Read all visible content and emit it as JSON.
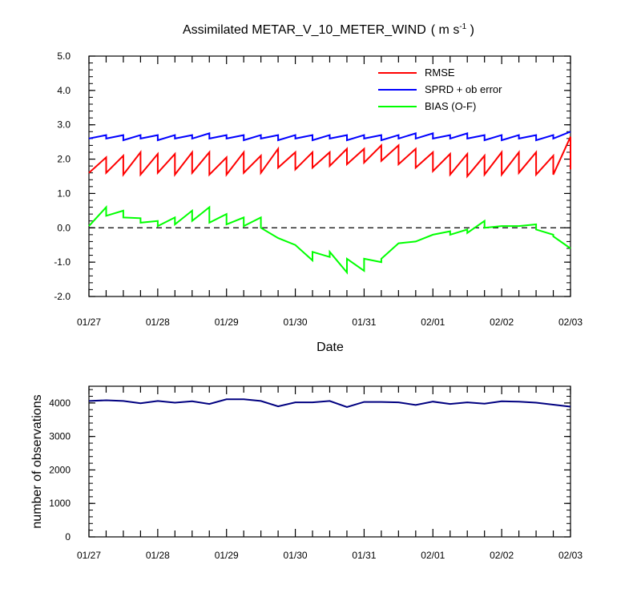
{
  "chart_data": [
    {
      "type": "line",
      "title": "Assimilated METAR_V_10_METER_WIND",
      "title_units_prefix": "( m s",
      "title_units_exp": "-1",
      "title_units_suffix": " )",
      "xlabel": "Date",
      "ylabel": "",
      "xlim": [
        "01/27",
        "02/03"
      ],
      "ylim": [
        -2.0,
        5.0
      ],
      "yticks": [
        "5.0",
        "4.0",
        "3.0",
        "2.0",
        "1.0",
        "0.0",
        "-1.0",
        "-2.0"
      ],
      "xticks": [
        "01/27",
        "01/28",
        "01/29",
        "01/30",
        "01/31",
        "02/01",
        "02/02",
        "02/03"
      ],
      "grid": false,
      "reference_line": {
        "y": 0,
        "style": "dashed"
      },
      "legend_position": "top-right",
      "series": [
        {
          "name": "RMSE",
          "color": "#ff0000",
          "points": [
            [
              0.0,
              1.6
            ],
            [
              0.25,
              2.05
            ],
            [
              0.25,
              1.6
            ],
            [
              0.5,
              2.1
            ],
            [
              0.5,
              1.55
            ],
            [
              0.75,
              2.2
            ],
            [
              0.75,
              1.55
            ],
            [
              1.0,
              2.15
            ],
            [
              1.0,
              1.6
            ],
            [
              1.25,
              2.15
            ],
            [
              1.25,
              1.55
            ],
            [
              1.5,
              2.2
            ],
            [
              1.5,
              1.6
            ],
            [
              1.75,
              2.2
            ],
            [
              1.75,
              1.55
            ],
            [
              2.0,
              2.05
            ],
            [
              2.0,
              1.55
            ],
            [
              2.25,
              2.2
            ],
            [
              2.25,
              1.6
            ],
            [
              2.5,
              2.1
            ],
            [
              2.5,
              1.6
            ],
            [
              2.75,
              2.3
            ],
            [
              2.75,
              1.75
            ],
            [
              3.0,
              2.2
            ],
            [
              3.0,
              1.7
            ],
            [
              3.25,
              2.2
            ],
            [
              3.25,
              1.75
            ],
            [
              3.5,
              2.2
            ],
            [
              3.5,
              1.8
            ],
            [
              3.75,
              2.3
            ],
            [
              3.75,
              1.85
            ],
            [
              4.0,
              2.3
            ],
            [
              4.0,
              1.9
            ],
            [
              4.25,
              2.4
            ],
            [
              4.25,
              1.95
            ],
            [
              4.5,
              2.4
            ],
            [
              4.5,
              1.85
            ],
            [
              4.75,
              2.3
            ],
            [
              4.75,
              1.75
            ],
            [
              5.0,
              2.2
            ],
            [
              5.0,
              1.65
            ],
            [
              5.25,
              2.15
            ],
            [
              5.25,
              1.55
            ],
            [
              5.5,
              2.15
            ],
            [
              5.5,
              1.5
            ],
            [
              5.75,
              2.1
            ],
            [
              5.75,
              1.55
            ],
            [
              6.0,
              2.2
            ],
            [
              6.0,
              1.55
            ],
            [
              6.25,
              2.2
            ],
            [
              6.25,
              1.6
            ],
            [
              6.5,
              2.2
            ],
            [
              6.5,
              1.55
            ],
            [
              6.75,
              2.1
            ],
            [
              6.75,
              1.55
            ],
            [
              7.0,
              2.65
            ],
            [
              7.0,
              1.7
            ]
          ]
        },
        {
          "name": "SPRD + ob error",
          "color": "#0000ff",
          "points": [
            [
              0.0,
              2.6
            ],
            [
              0.25,
              2.7
            ],
            [
              0.25,
              2.6
            ],
            [
              0.5,
              2.7
            ],
            [
              0.5,
              2.55
            ],
            [
              0.75,
              2.7
            ],
            [
              0.75,
              2.6
            ],
            [
              1.0,
              2.7
            ],
            [
              1.0,
              2.55
            ],
            [
              1.25,
              2.7
            ],
            [
              1.25,
              2.6
            ],
            [
              1.5,
              2.7
            ],
            [
              1.5,
              2.6
            ],
            [
              1.75,
              2.75
            ],
            [
              1.75,
              2.6
            ],
            [
              2.0,
              2.7
            ],
            [
              2.0,
              2.6
            ],
            [
              2.25,
              2.7
            ],
            [
              2.25,
              2.55
            ],
            [
              2.5,
              2.7
            ],
            [
              2.5,
              2.6
            ],
            [
              2.75,
              2.7
            ],
            [
              2.75,
              2.55
            ],
            [
              3.0,
              2.7
            ],
            [
              3.0,
              2.6
            ],
            [
              3.25,
              2.7
            ],
            [
              3.25,
              2.55
            ],
            [
              3.5,
              2.7
            ],
            [
              3.5,
              2.6
            ],
            [
              3.75,
              2.7
            ],
            [
              3.75,
              2.55
            ],
            [
              4.0,
              2.7
            ],
            [
              4.0,
              2.6
            ],
            [
              4.25,
              2.7
            ],
            [
              4.25,
              2.55
            ],
            [
              4.5,
              2.7
            ],
            [
              4.5,
              2.6
            ],
            [
              4.75,
              2.75
            ],
            [
              4.75,
              2.6
            ],
            [
              5.0,
              2.75
            ],
            [
              5.0,
              2.6
            ],
            [
              5.25,
              2.7
            ],
            [
              5.25,
              2.6
            ],
            [
              5.5,
              2.75
            ],
            [
              5.5,
              2.6
            ],
            [
              5.75,
              2.7
            ],
            [
              5.75,
              2.55
            ],
            [
              6.0,
              2.7
            ],
            [
              6.0,
              2.55
            ],
            [
              6.25,
              2.7
            ],
            [
              6.25,
              2.6
            ],
            [
              6.5,
              2.7
            ],
            [
              6.5,
              2.55
            ],
            [
              6.75,
              2.7
            ],
            [
              6.75,
              2.6
            ],
            [
              7.0,
              2.8
            ]
          ]
        },
        {
          "name": "BIAS (O-F)",
          "color": "#00ff00",
          "points": [
            [
              0.0,
              0.05
            ],
            [
              0.25,
              0.6
            ],
            [
              0.25,
              0.35
            ],
            [
              0.5,
              0.5
            ],
            [
              0.5,
              0.3
            ],
            [
              0.75,
              0.28
            ],
            [
              0.75,
              0.15
            ],
            [
              1.0,
              0.2
            ],
            [
              1.0,
              0.05
            ],
            [
              1.25,
              0.3
            ],
            [
              1.25,
              0.1
            ],
            [
              1.5,
              0.5
            ],
            [
              1.5,
              0.2
            ],
            [
              1.75,
              0.6
            ],
            [
              1.75,
              0.15
            ],
            [
              2.0,
              0.4
            ],
            [
              2.0,
              0.1
            ],
            [
              2.25,
              0.3
            ],
            [
              2.25,
              0.05
            ],
            [
              2.5,
              0.3
            ],
            [
              2.5,
              0.0
            ],
            [
              2.75,
              -0.3
            ],
            [
              3.0,
              -0.5
            ],
            [
              3.25,
              -0.95
            ],
            [
              3.25,
              -0.7
            ],
            [
              3.5,
              -0.85
            ],
            [
              3.5,
              -0.7
            ],
            [
              3.75,
              -1.3
            ],
            [
              3.75,
              -0.9
            ],
            [
              4.0,
              -1.25
            ],
            [
              4.0,
              -0.9
            ],
            [
              4.25,
              -1.0
            ],
            [
              4.25,
              -0.9
            ],
            [
              4.5,
              -0.45
            ],
            [
              4.75,
              -0.4
            ],
            [
              5.0,
              -0.2
            ],
            [
              5.0,
              -0.2
            ],
            [
              5.25,
              -0.1
            ],
            [
              5.25,
              -0.2
            ],
            [
              5.5,
              -0.05
            ],
            [
              5.5,
              -0.15
            ],
            [
              5.75,
              0.2
            ],
            [
              5.75,
              0.0
            ],
            [
              6.0,
              0.05
            ],
            [
              6.25,
              0.05
            ],
            [
              6.5,
              0.1
            ],
            [
              6.5,
              -0.05
            ],
            [
              6.75,
              -0.2
            ],
            [
              6.75,
              -0.25
            ],
            [
              7.0,
              -0.6
            ]
          ]
        }
      ]
    },
    {
      "type": "line",
      "title": "",
      "xlabel": "",
      "ylabel": "number of observations",
      "xlim": [
        "01/27",
        "02/03"
      ],
      "ylim": [
        0,
        4500
      ],
      "yticks": [
        "4000",
        "3000",
        "2000",
        "1000",
        "0"
      ],
      "xticks": [
        "01/27",
        "01/28",
        "01/29",
        "01/30",
        "01/31",
        "02/01",
        "02/02",
        "02/03"
      ],
      "grid": false,
      "series": [
        {
          "name": "",
          "color": "#000080",
          "points": [
            [
              0.0,
              4060
            ],
            [
              0.25,
              4080
            ],
            [
              0.5,
              4060
            ],
            [
              0.75,
              3990
            ],
            [
              1.0,
              4060
            ],
            [
              1.25,
              4010
            ],
            [
              1.5,
              4050
            ],
            [
              1.75,
              3970
            ],
            [
              2.0,
              4110
            ],
            [
              2.25,
              4110
            ],
            [
              2.5,
              4060
            ],
            [
              2.75,
              3900
            ],
            [
              3.0,
              4020
            ],
            [
              3.25,
              4020
            ],
            [
              3.5,
              4060
            ],
            [
              3.75,
              3880
            ],
            [
              4.0,
              4030
            ],
            [
              4.25,
              4030
            ],
            [
              4.5,
              4020
            ],
            [
              4.75,
              3940
            ],
            [
              5.0,
              4040
            ],
            [
              5.25,
              3970
            ],
            [
              5.5,
              4020
            ],
            [
              5.75,
              3980
            ],
            [
              6.0,
              4050
            ],
            [
              6.25,
              4040
            ],
            [
              6.5,
              4010
            ],
            [
              6.75,
              3950
            ],
            [
              7.0,
              3890
            ]
          ]
        }
      ]
    }
  ]
}
